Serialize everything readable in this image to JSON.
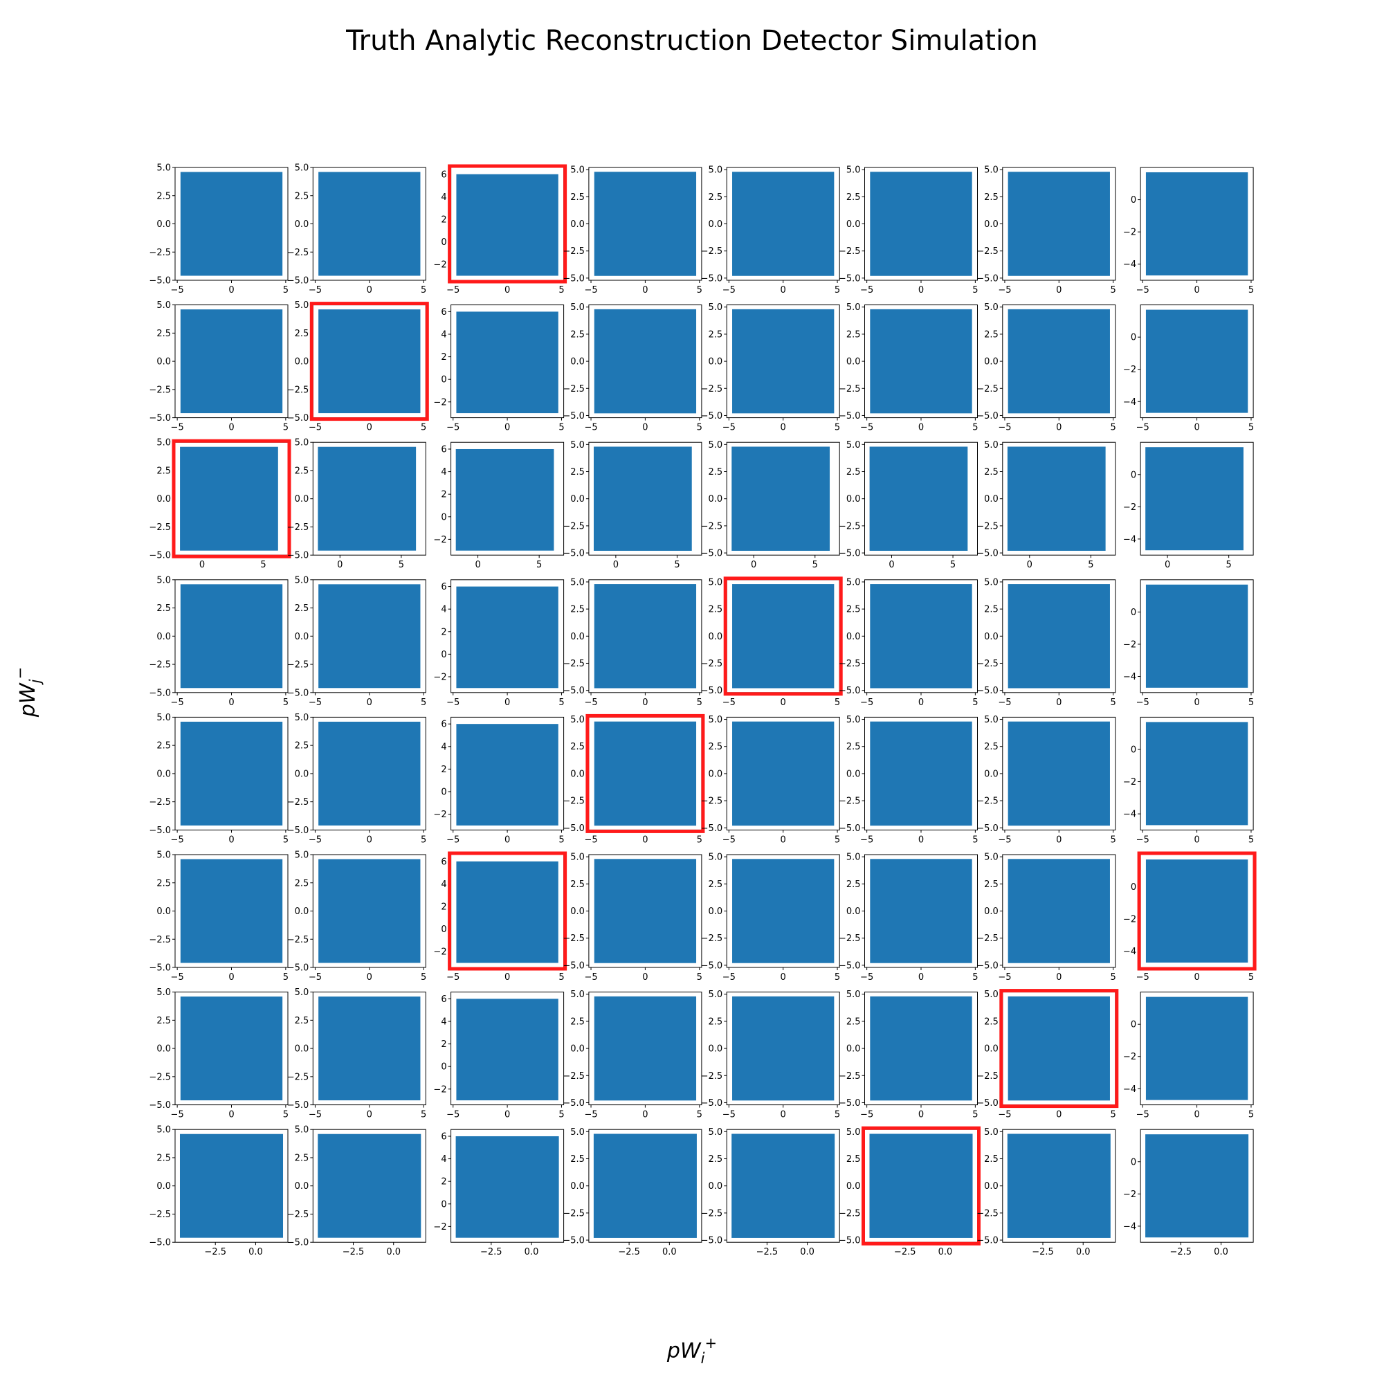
{
  "figure": {
    "title": "Truth Analytic Reconstruction Detector Simulation",
    "xlabel": "pW_i^+",
    "ylabel": "pW_j^-"
  },
  "colors": {
    "scatter": "#1f77b4",
    "highlight": "#ff1a1a",
    "axes": "#000000"
  },
  "chart_data": {
    "type": "scatter",
    "grid": false,
    "layout": {
      "rows": 8,
      "cols": 8
    },
    "column_y_ranges": [
      {
        "ylim": [
          -5,
          5
        ],
        "yticks": [
          "-5.0",
          "-2.5",
          "0.0",
          "2.5",
          "5.0"
        ],
        "data_y": [
          -4.6,
          4.6
        ]
      },
      {
        "ylim": [
          -5,
          5
        ],
        "yticks": [
          "-5.0",
          "-2.5",
          "0.0",
          "2.5",
          "5.0"
        ],
        "data_y": [
          -4.6,
          4.6
        ]
      },
      {
        "ylim": [
          -3.4,
          6.6
        ],
        "yticks": [
          "-2",
          "0",
          "2",
          "4",
          "6"
        ],
        "data_y": [
          -3.0,
          6.0
        ]
      },
      {
        "ylim": [
          -5.2,
          5.2
        ],
        "yticks": [
          "-5.0",
          "-2.5",
          "0.0",
          "2.5",
          "5.0"
        ],
        "data_y": [
          -4.8,
          4.8
        ]
      },
      {
        "ylim": [
          -5.2,
          5.2
        ],
        "yticks": [
          "-5.0",
          "-2.5",
          "0.0",
          "2.5",
          "5.0"
        ],
        "data_y": [
          -4.8,
          4.8
        ]
      },
      {
        "ylim": [
          -5.2,
          5.2
        ],
        "yticks": [
          "-5.0",
          "-2.5",
          "0.0",
          "2.5",
          "5.0"
        ],
        "data_y": [
          -4.8,
          4.8
        ]
      },
      {
        "ylim": [
          -5.2,
          5.2
        ],
        "yticks": [
          "-5.0",
          "-2.5",
          "0.0",
          "2.5",
          "5.0"
        ],
        "data_y": [
          -4.8,
          4.8
        ]
      },
      {
        "ylim": [
          -5.0,
          2.0
        ],
        "yticks": [
          "-4",
          "-2",
          "0"
        ],
        "data_y": [
          -4.7,
          1.7
        ]
      }
    ],
    "row_x_ranges": [
      {
        "xlim": [
          -5.2,
          5.2
        ],
        "xticks": [
          "-5",
          "0",
          "5"
        ],
        "data_x": [
          -4.7,
          4.7
        ]
      },
      {
        "xlim": [
          -5.2,
          5.2
        ],
        "xticks": [
          "-5",
          "0",
          "5"
        ],
        "data_x": [
          -4.7,
          4.7
        ]
      },
      {
        "xlim": [
          -2.2,
          7.0
        ],
        "xticks": [
          "0",
          "5"
        ],
        "data_x": [
          -1.8,
          6.2
        ]
      },
      {
        "xlim": [
          -5.2,
          5.2
        ],
        "xticks": [
          "-5",
          "0",
          "5"
        ],
        "data_x": [
          -4.7,
          4.7
        ]
      },
      {
        "xlim": [
          -5.2,
          5.2
        ],
        "xticks": [
          "-5",
          "0",
          "5"
        ],
        "data_x": [
          -4.7,
          4.7
        ]
      },
      {
        "xlim": [
          -5.2,
          5.2
        ],
        "xticks": [
          "-5",
          "0",
          "5"
        ],
        "data_x": [
          -4.7,
          4.7
        ]
      },
      {
        "xlim": [
          -5.2,
          5.2
        ],
        "xticks": [
          "-5",
          "0",
          "5"
        ],
        "data_x": [
          -4.7,
          4.7
        ]
      },
      {
        "xlim": [
          -5.0,
          2.0
        ],
        "xticks": [
          "-2.5",
          "0.0"
        ],
        "data_x": [
          -4.7,
          1.7
        ]
      }
    ],
    "highlighted_panels": [
      [
        0,
        2
      ],
      [
        1,
        1
      ],
      [
        2,
        0
      ],
      [
        3,
        4
      ],
      [
        4,
        3
      ],
      [
        5,
        2
      ],
      [
        5,
        7
      ],
      [
        6,
        6
      ],
      [
        7,
        5
      ]
    ]
  }
}
